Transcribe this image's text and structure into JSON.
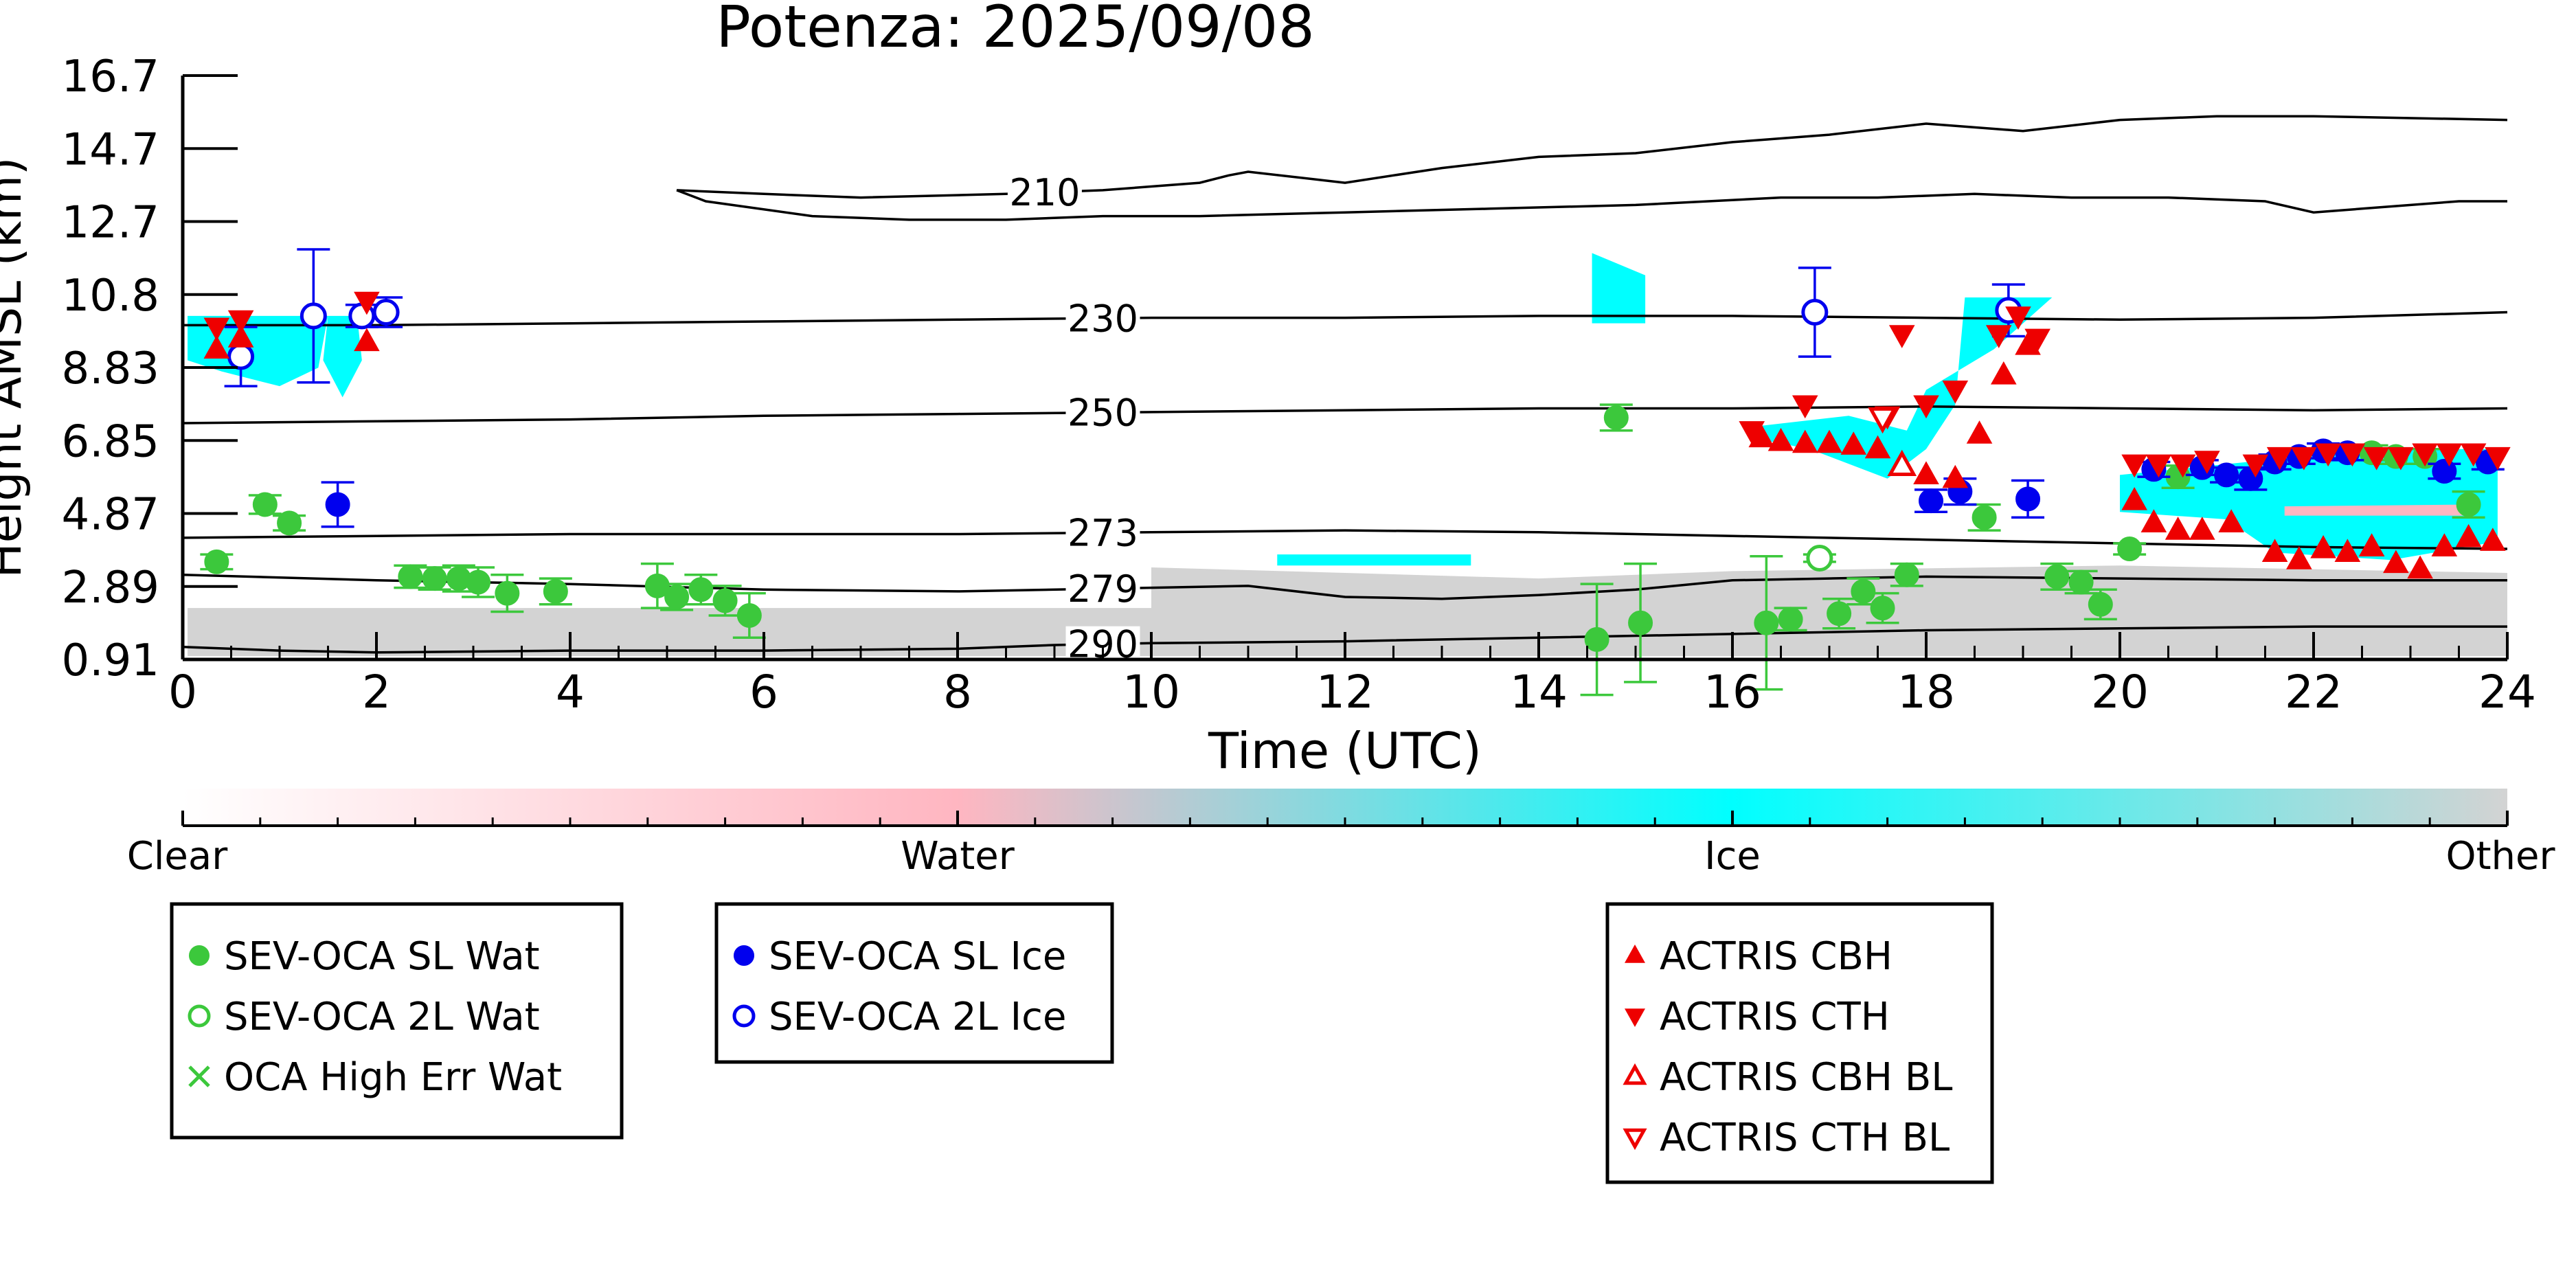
{
  "chart_data": {
    "type": "scatter",
    "title": "Potenza: 2025/09/08",
    "xlabel": "Time (UTC)",
    "ylabel": "Height AMSL (km)",
    "xlim": [
      0,
      24
    ],
    "ylim": [
      0.91,
      16.7
    ],
    "xticks": [
      "0",
      "2",
      "4",
      "6",
      "8",
      "10",
      "12",
      "14",
      "16",
      "18",
      "20",
      "22",
      "24"
    ],
    "yticks": [
      "0.91",
      "2.89",
      "4.87",
      "6.85",
      "8.83",
      "10.8",
      "12.7",
      "14.7",
      "16.7"
    ],
    "colors": {
      "clear": "#ffffff",
      "water": "#ffb6c1",
      "ice": "#00ffff",
      "other": "#d3d3d3",
      "sl_wat": "#3cc83c",
      "ice_marker": "#0000ee",
      "actris": "#ee0000",
      "contour": "#000000"
    },
    "colorbar": {
      "labels": [
        "Clear",
        "Water",
        "Ice",
        "Other"
      ]
    },
    "temperature_contours": [
      {
        "label": "210",
        "label_x": 8.9,
        "points": [
          [
            5.1,
            13.6
          ],
          [
            6.0,
            13.5
          ],
          [
            7.0,
            13.4
          ],
          [
            8.5,
            13.5
          ],
          [
            9.5,
            13.6
          ],
          [
            10.5,
            13.8
          ],
          [
            10.8,
            14.0
          ],
          [
            11.0,
            14.1
          ],
          [
            12.0,
            13.8
          ],
          [
            13.0,
            14.2
          ],
          [
            14.0,
            14.5
          ],
          [
            15.0,
            14.6
          ],
          [
            16.0,
            14.9
          ],
          [
            17.0,
            15.1
          ],
          [
            18.0,
            15.4
          ],
          [
            19.0,
            15.2
          ],
          [
            20.0,
            15.5
          ],
          [
            21.0,
            15.6
          ],
          [
            22.0,
            15.6
          ],
          [
            24.0,
            15.5
          ]
        ]
      },
      {
        "label": "",
        "label_x": null,
        "points": [
          [
            5.1,
            13.6
          ],
          [
            5.4,
            13.3
          ],
          [
            6.5,
            12.9
          ],
          [
            7.5,
            12.8
          ],
          [
            8.5,
            12.8
          ],
          [
            9.5,
            12.9
          ],
          [
            10.5,
            12.9
          ],
          [
            12.0,
            13.0
          ],
          [
            13.5,
            13.1
          ],
          [
            15.0,
            13.2
          ],
          [
            16.5,
            13.4
          ],
          [
            17.5,
            13.4
          ],
          [
            18.5,
            13.5
          ],
          [
            19.5,
            13.4
          ],
          [
            20.5,
            13.4
          ],
          [
            21.5,
            13.3
          ],
          [
            22.0,
            13.0
          ],
          [
            22.5,
            13.1
          ],
          [
            23.5,
            13.3
          ],
          [
            24.0,
            13.3
          ]
        ]
      },
      {
        "label": "230",
        "label_x": 9.5,
        "points": [
          [
            0,
            9.95
          ],
          [
            2,
            9.95
          ],
          [
            4,
            10.0
          ],
          [
            6,
            10.05
          ],
          [
            8,
            10.1
          ],
          [
            10,
            10.15
          ],
          [
            12,
            10.15
          ],
          [
            14,
            10.2
          ],
          [
            16,
            10.2
          ],
          [
            18,
            10.15
          ],
          [
            20,
            10.1
          ],
          [
            22,
            10.15
          ],
          [
            24,
            10.3
          ]
        ]
      },
      {
        "label": "250",
        "label_x": 9.5,
        "points": [
          [
            0,
            7.3
          ],
          [
            2,
            7.35
          ],
          [
            4,
            7.4
          ],
          [
            6,
            7.5
          ],
          [
            8,
            7.55
          ],
          [
            10,
            7.6
          ],
          [
            12,
            7.65
          ],
          [
            14,
            7.7
          ],
          [
            16,
            7.7
          ],
          [
            18,
            7.75
          ],
          [
            20,
            7.7
          ],
          [
            22,
            7.65
          ],
          [
            24,
            7.7
          ]
        ]
      },
      {
        "label": "273",
        "label_x": 9.5,
        "points": [
          [
            0,
            4.2
          ],
          [
            2,
            4.25
          ],
          [
            4,
            4.3
          ],
          [
            6,
            4.3
          ],
          [
            8,
            4.3
          ],
          [
            10,
            4.35
          ],
          [
            12,
            4.4
          ],
          [
            14,
            4.35
          ],
          [
            16,
            4.25
          ],
          [
            18,
            4.15
          ],
          [
            20,
            4.05
          ],
          [
            22,
            3.95
          ],
          [
            24,
            3.9
          ]
        ]
      },
      {
        "label": "279",
        "label_x": 9.5,
        "points": [
          [
            0,
            3.2
          ],
          [
            2,
            3.05
          ],
          [
            4,
            2.95
          ],
          [
            6,
            2.8
          ],
          [
            8,
            2.75
          ],
          [
            10,
            2.85
          ],
          [
            11,
            2.9
          ],
          [
            12,
            2.6
          ],
          [
            13,
            2.55
          ],
          [
            14,
            2.65
          ],
          [
            15,
            2.8
          ],
          [
            16,
            3.05
          ],
          [
            17,
            3.1
          ],
          [
            18,
            3.15
          ],
          [
            20,
            3.1
          ],
          [
            22,
            3.05
          ],
          [
            24,
            3.05
          ]
        ]
      },
      {
        "label": "290",
        "label_x": 9.5,
        "points": [
          [
            0,
            1.25
          ],
          [
            1,
            1.15
          ],
          [
            2,
            1.1
          ],
          [
            4,
            1.15
          ],
          [
            6,
            1.15
          ],
          [
            8,
            1.2
          ],
          [
            9,
            1.3
          ],
          [
            10,
            1.35
          ],
          [
            12,
            1.4
          ],
          [
            14,
            1.5
          ],
          [
            16,
            1.6
          ],
          [
            18,
            1.7
          ],
          [
            20,
            1.75
          ],
          [
            22,
            1.8
          ],
          [
            24,
            1.8
          ]
        ]
      }
    ],
    "series": [
      {
        "name": "SEV-OCA SL Wat",
        "marker": "circle-filled",
        "color": "#3cc83c",
        "points": [
          [
            0.35,
            3.55,
            0.2
          ],
          [
            0.85,
            5.1,
            0.25
          ],
          [
            1.1,
            4.6,
            0.2
          ],
          [
            2.35,
            3.15,
            0.3
          ],
          [
            2.6,
            3.1,
            0.3
          ],
          [
            2.85,
            3.1,
            0.35
          ],
          [
            3.05,
            3.0,
            0.4
          ],
          [
            3.35,
            2.7,
            0.5
          ],
          [
            3.85,
            2.75,
            0.35
          ],
          [
            4.9,
            2.9,
            0.6
          ],
          [
            5.1,
            2.6,
            0.35
          ],
          [
            5.35,
            2.8,
            0.4
          ],
          [
            5.6,
            2.5,
            0.4
          ],
          [
            5.85,
            2.1,
            0.6
          ],
          [
            14.6,
            1.45,
            1.5
          ],
          [
            15.05,
            1.9,
            1.6
          ],
          [
            16.35,
            1.9,
            1.8
          ],
          [
            16.6,
            2.0,
            0.3
          ],
          [
            17.1,
            2.15,
            0.4
          ],
          [
            17.35,
            2.75,
            0.35
          ],
          [
            17.55,
            2.3,
            0.4
          ],
          [
            17.8,
            3.2,
            0.3
          ],
          [
            18.6,
            4.75,
            0.35
          ],
          [
            19.35,
            3.15,
            0.35
          ],
          [
            19.6,
            3.0,
            0.3
          ],
          [
            19.8,
            2.4,
            0.4
          ],
          [
            20.1,
            3.9,
            0.15
          ],
          [
            20.6,
            5.85,
            0.3
          ],
          [
            22.6,
            6.5,
            0.2
          ],
          [
            22.85,
            6.4,
            0.2
          ],
          [
            23.15,
            6.4,
            0.2
          ],
          [
            23.6,
            5.1,
            0.35
          ],
          [
            14.8,
            7.45,
            0.35
          ]
        ]
      },
      {
        "name": "SEV-OCA 2L Wat",
        "marker": "circle-open",
        "color": "#3cc83c",
        "points": [
          [
            16.9,
            3.65,
            0.1
          ]
        ]
      },
      {
        "name": "OCA High Err Wat",
        "marker": "x",
        "color": "#3cc83c",
        "points": []
      },
      {
        "name": "SEV-OCA SL Ice",
        "marker": "circle-filled",
        "color": "#0000ee",
        "points": [
          [
            1.6,
            5.1,
            0.6
          ],
          [
            18.05,
            5.2,
            0.3
          ],
          [
            18.35,
            5.45,
            0.35
          ],
          [
            19.05,
            5.25,
            0.5
          ],
          [
            20.35,
            6.05,
            0.2
          ],
          [
            20.85,
            6.1,
            0.2
          ],
          [
            21.1,
            5.9,
            0.2
          ],
          [
            21.35,
            5.8,
            0.3
          ],
          [
            21.6,
            6.25,
            0.2
          ],
          [
            21.85,
            6.4,
            0.2
          ],
          [
            22.1,
            6.55,
            0.2
          ],
          [
            22.35,
            6.5,
            0.2
          ],
          [
            23.35,
            6.0,
            0.2
          ],
          [
            23.8,
            6.25,
            0.2
          ]
        ]
      },
      {
        "name": "SEV-OCA 2L Ice",
        "marker": "circle-open",
        "color": "#0000ee",
        "points": [
          [
            0.6,
            9.1,
            0.8
          ],
          [
            1.35,
            10.2,
            1.8
          ],
          [
            1.85,
            10.2,
            0.3
          ],
          [
            2.1,
            10.3,
            0.4
          ],
          [
            16.85,
            10.3,
            1.2
          ],
          [
            18.85,
            10.35,
            0.7
          ]
        ]
      },
      {
        "name": "ACTRIS CBH",
        "marker": "triangle-up-filled",
        "color": "#ee0000",
        "points": [
          [
            0.35,
            9.3
          ],
          [
            0.6,
            9.6
          ],
          [
            1.9,
            9.5
          ],
          [
            16.3,
            6.9
          ],
          [
            16.5,
            6.8
          ],
          [
            16.75,
            6.75
          ],
          [
            17.0,
            6.75
          ],
          [
            17.25,
            6.7
          ],
          [
            17.5,
            6.6
          ],
          [
            17.75,
            6.2
          ],
          [
            18.0,
            5.9
          ],
          [
            18.3,
            5.8
          ],
          [
            18.55,
            7.0
          ],
          [
            18.8,
            8.6
          ],
          [
            19.05,
            9.4
          ],
          [
            20.15,
            5.2
          ],
          [
            20.35,
            4.6
          ],
          [
            20.6,
            4.4
          ],
          [
            20.85,
            4.4
          ],
          [
            21.15,
            4.6
          ],
          [
            21.6,
            3.8
          ],
          [
            21.85,
            3.6
          ],
          [
            22.1,
            3.9
          ],
          [
            22.35,
            3.8
          ],
          [
            22.6,
            3.95
          ],
          [
            22.85,
            3.5
          ],
          [
            23.1,
            3.35
          ],
          [
            23.35,
            3.95
          ],
          [
            23.6,
            4.2
          ],
          [
            23.85,
            4.1
          ]
        ]
      },
      {
        "name": "ACTRIS CTH",
        "marker": "triangle-down-filled",
        "color": "#ee0000",
        "points": [
          [
            0.35,
            9.9
          ],
          [
            0.6,
            10.1
          ],
          [
            1.9,
            10.6
          ],
          [
            16.75,
            7.8
          ],
          [
            17.6,
            7.5
          ],
          [
            18.0,
            7.8
          ],
          [
            18.3,
            8.2
          ],
          [
            17.75,
            9.7
          ],
          [
            18.75,
            9.7
          ],
          [
            18.95,
            10.2
          ],
          [
            19.15,
            9.6
          ],
          [
            16.2,
            7.1
          ],
          [
            20.15,
            6.2
          ],
          [
            20.4,
            6.2
          ],
          [
            20.65,
            6.2
          ],
          [
            20.9,
            6.3
          ],
          [
            21.4,
            6.2
          ],
          [
            21.65,
            6.4
          ],
          [
            21.9,
            6.4
          ],
          [
            22.15,
            6.5
          ],
          [
            22.4,
            6.5
          ],
          [
            22.65,
            6.4
          ],
          [
            22.9,
            6.4
          ],
          [
            23.15,
            6.5
          ],
          [
            23.4,
            6.5
          ],
          [
            23.65,
            6.5
          ],
          [
            23.9,
            6.4
          ]
        ]
      },
      {
        "name": "ACTRIS CBH BL",
        "marker": "triangle-up-open",
        "color": "#ee0000",
        "points": [
          [
            17.75,
            6.15
          ]
        ]
      },
      {
        "name": "ACTRIS CTH BL",
        "marker": "triangle-down-open",
        "color": "#ee0000",
        "points": [
          [
            17.55,
            7.45
          ]
        ]
      }
    ],
    "legends": [
      [
        "SEV-OCA SL Wat",
        "SEV-OCA 2L Wat",
        "OCA High Err Wat"
      ],
      [
        "SEV-OCA SL Ice",
        "SEV-OCA 2L Ice"
      ],
      [
        "ACTRIS CBH",
        "ACTRIS CTH",
        "ACTRIS CBH BL",
        "ACTRIS CTH BL"
      ]
    ],
    "grid": false
  }
}
